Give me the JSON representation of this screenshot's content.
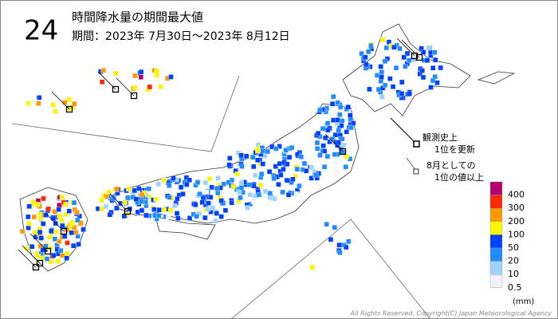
{
  "header": {
    "hour": "24",
    "title": "時間降水量の期間最大値",
    "period": "期間：2023年 7月30日～2023年 8月12日"
  },
  "symbols": [
    {
      "label": [
        "観測史上",
        "1位を更新"
      ]
    },
    {
      "label": [
        "8月としての",
        "1位の値以上"
      ]
    }
  ],
  "legend": {
    "unit": "(mm)",
    "levels": [
      {
        "value": 400,
        "color": "#b4006e"
      },
      {
        "value": 300,
        "color": "#ff2800"
      },
      {
        "value": 200,
        "color": "#ff9900"
      },
      {
        "value": 100,
        "color": "#faf500"
      },
      {
        "value": 50,
        "color": "#0041ff"
      },
      {
        "value": 20,
        "color": "#218cff"
      },
      {
        "value": 10,
        "color": "#a0d2ff"
      },
      {
        "value": 0.5,
        "color": "#f2f2ff"
      }
    ]
  },
  "footer": {
    "copyright": "All Rights Reserved, Copyright(C) Japan Meteorological Agency"
  }
}
